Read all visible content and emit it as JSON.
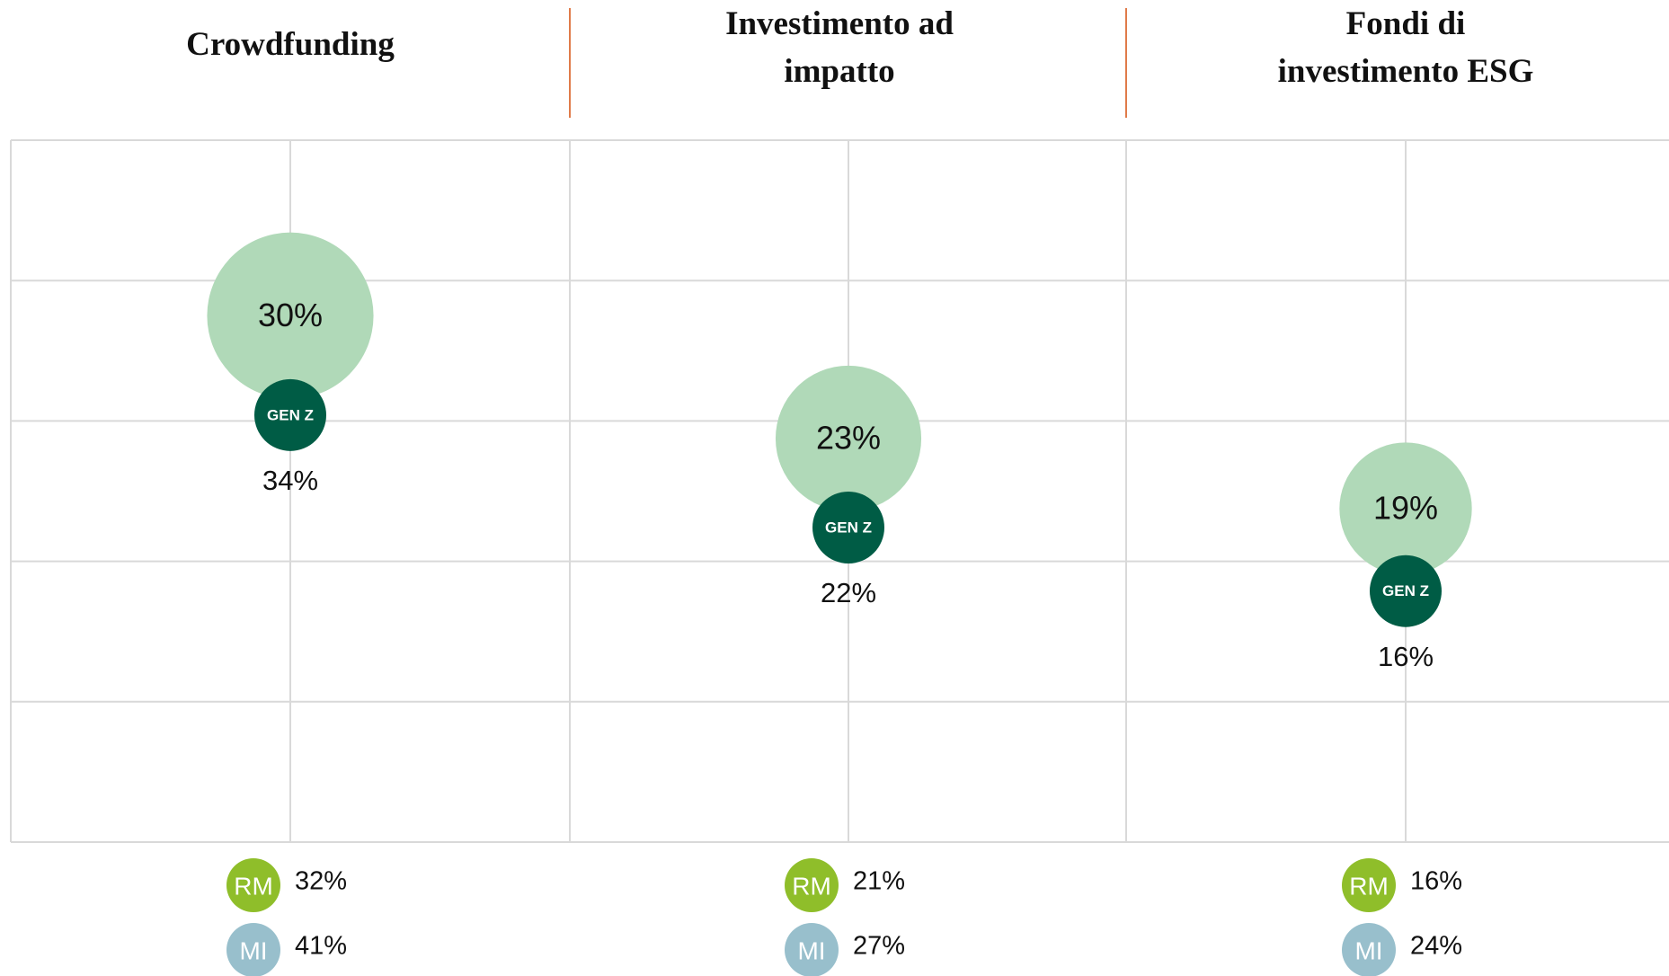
{
  "chart_data": {
    "type": "bubble",
    "categories": [
      "Crowdfunding",
      "Investimento ad impatto",
      "Fondi di investimento ESG"
    ],
    "values": [
      30,
      23,
      19
    ],
    "value_labels": [
      "30%",
      "23%",
      "19%"
    ],
    "color": "#b0d9b8",
    "series": [
      {
        "name": "GEN Z",
        "color": "#005c45",
        "values": [
          34,
          22,
          16
        ],
        "value_labels": [
          "34%",
          "22%",
          "16%"
        ]
      },
      {
        "name": "RM",
        "color": "#8fbe2a",
        "values": [
          32,
          21,
          16
        ],
        "value_labels": [
          "32%",
          "21%",
          "16%"
        ]
      },
      {
        "name": "MI",
        "color": "#98bfcc",
        "values": [
          41,
          27,
          24
        ],
        "value_labels": [
          "41%",
          "27%",
          "24%"
        ]
      }
    ],
    "ylim": [
      0,
      40
    ],
    "yticks": [
      0,
      8,
      16,
      24,
      32,
      40
    ],
    "grid": true
  }
}
